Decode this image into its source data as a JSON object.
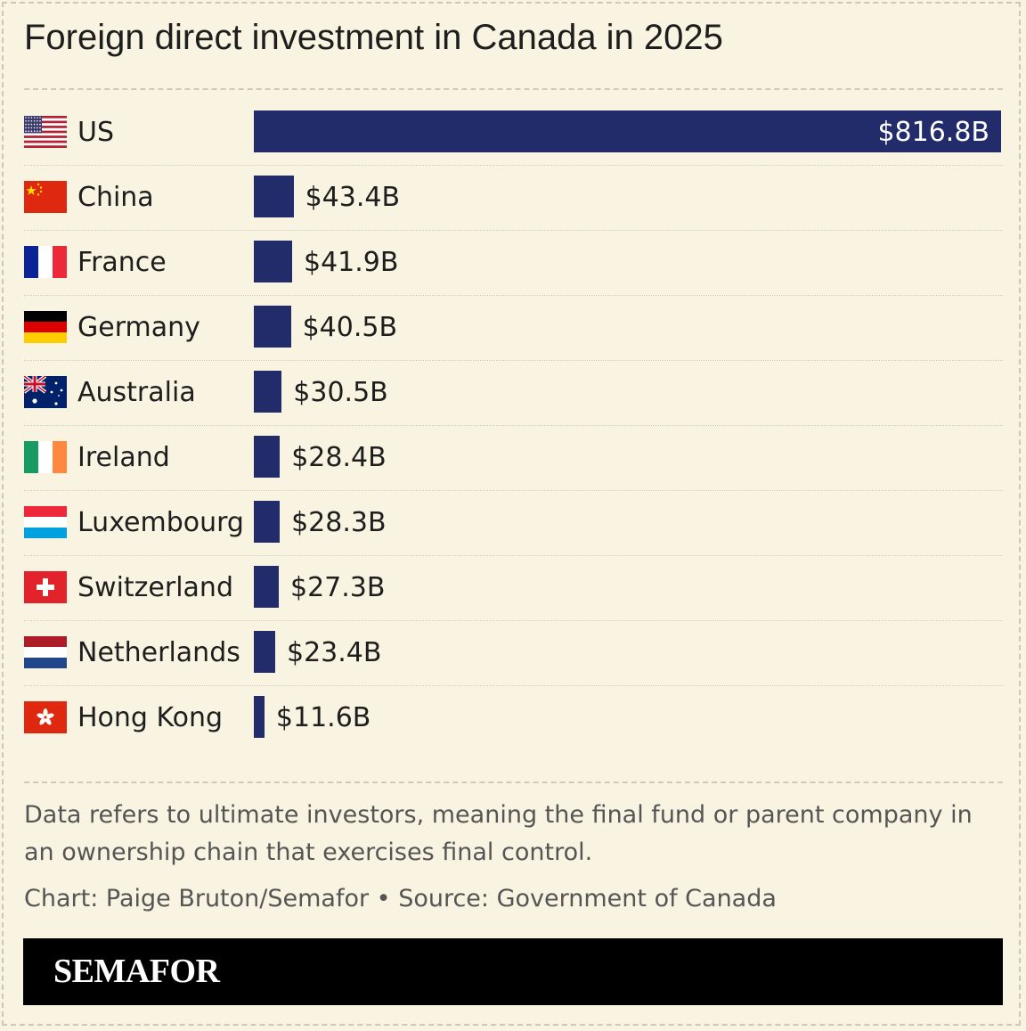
{
  "chart_data": {
    "type": "bar",
    "orientation": "horizontal",
    "title": "Foreign direct investment in Canada in 2025",
    "categories": [
      "US",
      "China",
      "France",
      "Germany",
      "Australia",
      "Ireland",
      "Luxembourg",
      "Switzerland",
      "Netherlands",
      "Hong Kong"
    ],
    "values": [
      816.8,
      43.4,
      41.9,
      40.5,
      30.5,
      28.4,
      28.3,
      27.3,
      23.4,
      11.6
    ],
    "value_labels": [
      "$816.8B",
      "$43.4B",
      "$41.9B",
      "$40.5B",
      "$30.5B",
      "$28.4B",
      "$28.3B",
      "$27.3B",
      "$23.4B",
      "$11.6B"
    ],
    "flags": [
      "us-flag-icon",
      "china-flag-icon",
      "france-flag-icon",
      "germany-flag-icon",
      "australia-flag-icon",
      "ireland-flag-icon",
      "luxembourg-flag-icon",
      "switzerland-flag-icon",
      "netherlands-flag-icon",
      "hong-kong-flag-icon"
    ],
    "xlim": [
      0,
      816.8
    ],
    "grid": false,
    "bar_color": "#232c6a"
  },
  "note": "Data refers to ultimate investors, meaning the final fund or parent company in an ownership chain that exercises final control.",
  "credit": "Chart: Paige Bruton/Semafor • Source: Government of Canada",
  "footer": {
    "logo": "SEMAFOR"
  },
  "colors": {
    "background": "#f8f4e1",
    "bar": "#232c6a",
    "footer": "#000000"
  }
}
